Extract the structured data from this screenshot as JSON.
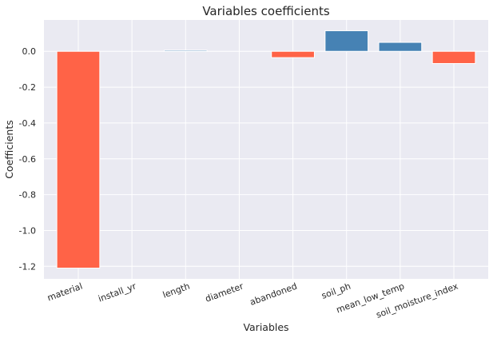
{
  "chart_data": {
    "type": "bar",
    "title": "Variables coefficients",
    "xlabel": "Variables",
    "ylabel": "Coefficients",
    "categories": [
      "material",
      "install_yr",
      "length",
      "diameter",
      "abandoned",
      "soil_ph",
      "mean_low_temp",
      "soil_moisture_index"
    ],
    "values": [
      -1.21,
      0.0,
      0.006,
      0.0,
      -0.035,
      0.115,
      0.05,
      -0.068
    ],
    "ylim": [
      -1.27,
      0.175
    ],
    "yticks": [
      "-1.2",
      "-1.0",
      "-0.8",
      "-0.6",
      "-0.4",
      "-0.2",
      "0.0"
    ],
    "ytick_values": [
      -1.2,
      -1.0,
      -0.8,
      -0.6,
      -0.4,
      -0.2,
      0.0
    ],
    "grid": true,
    "colors": {
      "positive": "#4682b4",
      "negative": "#ff6347",
      "plot_bg": "#eaeaf2",
      "grid": "#ffffff"
    }
  }
}
